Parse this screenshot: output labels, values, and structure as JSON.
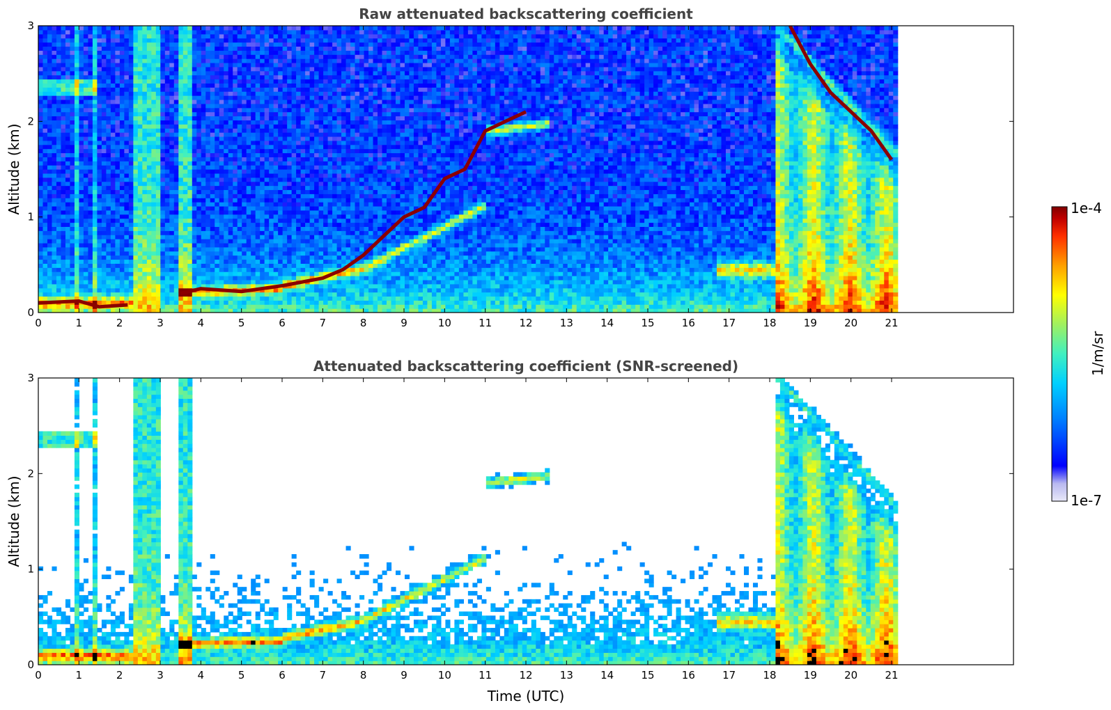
{
  "chart_data": [
    {
      "type": "heatmap",
      "title": "Raw attenuated backscattering coefficient",
      "xlabel": "",
      "ylabel": "Altitude (km)",
      "xlim": [
        0,
        24
      ],
      "ylim": [
        0,
        3
      ],
      "xticks": [
        0,
        1,
        2,
        3,
        4,
        5,
        6,
        7,
        8,
        9,
        10,
        11,
        12,
        13,
        14,
        15,
        16,
        17,
        18,
        19,
        20,
        21
      ],
      "yticks": [
        0,
        1,
        2,
        3
      ],
      "data_end_hour": 21.15,
      "screened": false,
      "layers": [
        {
          "name": "surface layer",
          "points": [
            [
              0,
              0.1
            ],
            [
              1,
              0.12
            ],
            [
              1.5,
              0.06
            ],
            [
              2.2,
              0.08
            ]
          ]
        },
        {
          "name": "boundary layer top",
          "points": [
            [
              3.5,
              0.2
            ],
            [
              4,
              0.25
            ],
            [
              5,
              0.22
            ],
            [
              6,
              0.28
            ],
            [
              7,
              0.36
            ],
            [
              7.5,
              0.45
            ],
            [
              8,
              0.6
            ],
            [
              8.5,
              0.8
            ],
            [
              9,
              1.0
            ],
            [
              9.5,
              1.1
            ],
            [
              10,
              1.4
            ],
            [
              10.5,
              1.5
            ],
            [
              11,
              1.9
            ],
            [
              11.5,
              2.0
            ],
            [
              12,
              2.1
            ]
          ]
        },
        {
          "name": "cloud 18-21 UTC",
          "points": [
            [
              18.5,
              3.0
            ],
            [
              19,
              2.6
            ],
            [
              19.5,
              2.3
            ],
            [
              20,
              2.1
            ],
            [
              20.5,
              1.9
            ],
            [
              21,
              1.6
            ]
          ]
        }
      ]
    },
    {
      "type": "heatmap",
      "title": "Attenuated backscattering coefficient (SNR-screened)",
      "xlabel": "Time (UTC)",
      "ylabel": "Altitude (km)",
      "xlim": [
        0,
        24
      ],
      "ylim": [
        0,
        3
      ],
      "xticks": [
        0,
        1,
        2,
        3,
        4,
        5,
        6,
        7,
        8,
        9,
        10,
        11,
        12,
        13,
        14,
        15,
        16,
        17,
        18,
        19,
        20,
        21
      ],
      "yticks": [
        0,
        1,
        2,
        3
      ],
      "data_end_hour": 21.15,
      "screened": true
    }
  ],
  "colorbar": {
    "label": "1/m/sr",
    "max_label": "1e-4",
    "min_label": "1e-7",
    "scale": "log",
    "colormap": "jet",
    "colors": [
      "#e8e8f8",
      "#b8b8f0",
      "#0000ff",
      "#0080ff",
      "#00d0ff",
      "#40f0c0",
      "#a0f060",
      "#ffff00",
      "#ffa000",
      "#ff3000",
      "#c00000",
      "#800000"
    ]
  }
}
